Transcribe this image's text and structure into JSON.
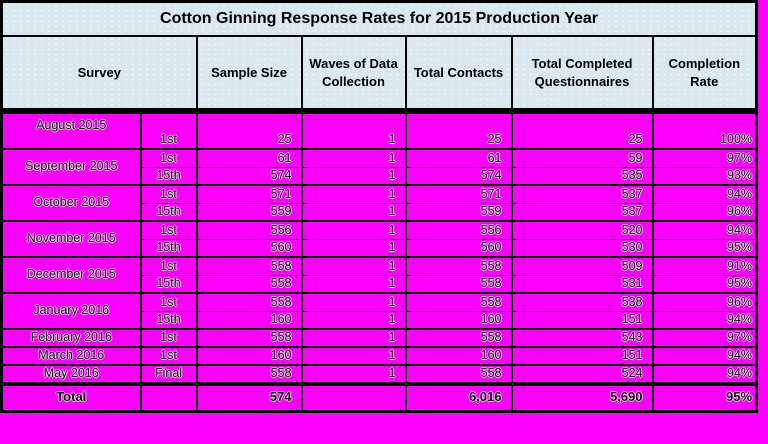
{
  "colors": {
    "page_background": "#ff00ff",
    "body_cell_background": "#fb00fb",
    "header_background": "#d9e7ee",
    "border": "#000000",
    "text": "#000000"
  },
  "table": {
    "title": "Cotton Ginning Response Rates for 2015 Production Year",
    "columns": [
      "Survey",
      "Sample Size",
      "Waves of Data Collection",
      "Total Contacts",
      "Total Completed Questionnaires",
      "Completion Rate"
    ],
    "groups": [
      {
        "month": "August 2015",
        "rows": [
          {
            "wave": "1st",
            "sample_size": "25",
            "waves_of_data_collection": "1",
            "total_contacts": "25",
            "total_completed_questionnaires": "25",
            "completion_rate": "100%"
          }
        ]
      },
      {
        "month": "September 2015",
        "rows": [
          {
            "wave": "1st",
            "sample_size": "61",
            "waves_of_data_collection": "1",
            "total_contacts": "61",
            "total_completed_questionnaires": "59",
            "completion_rate": "97%"
          },
          {
            "wave": "15th",
            "sample_size": "574",
            "waves_of_data_collection": "1",
            "total_contacts": "574",
            "total_completed_questionnaires": "535",
            "completion_rate": "93%"
          }
        ]
      },
      {
        "month": "October 2015",
        "rows": [
          {
            "wave": "1st",
            "sample_size": "571",
            "waves_of_data_collection": "1",
            "total_contacts": "571",
            "total_completed_questionnaires": "537",
            "completion_rate": "94%"
          },
          {
            "wave": "15th",
            "sample_size": "559",
            "waves_of_data_collection": "1",
            "total_contacts": "559",
            "total_completed_questionnaires": "537",
            "completion_rate": "96%"
          }
        ]
      },
      {
        "month": "November 2015",
        "rows": [
          {
            "wave": "1st",
            "sample_size": "556",
            "waves_of_data_collection": "1",
            "total_contacts": "556",
            "total_completed_questionnaires": "520",
            "completion_rate": "94%"
          },
          {
            "wave": "15th",
            "sample_size": "560",
            "waves_of_data_collection": "1",
            "total_contacts": "560",
            "total_completed_questionnaires": "530",
            "completion_rate": "95%"
          }
        ]
      },
      {
        "month": "December 2015",
        "rows": [
          {
            "wave": "1st",
            "sample_size": "558",
            "waves_of_data_collection": "1",
            "total_contacts": "558",
            "total_completed_questionnaires": "509",
            "completion_rate": "91%"
          },
          {
            "wave": "15th",
            "sample_size": "558",
            "waves_of_data_collection": "1",
            "total_contacts": "558",
            "total_completed_questionnaires": "531",
            "completion_rate": "95%"
          }
        ]
      },
      {
        "month": "January 2016",
        "rows": [
          {
            "wave": "1st",
            "sample_size": "558",
            "waves_of_data_collection": "1",
            "total_contacts": "558",
            "total_completed_questionnaires": "538",
            "completion_rate": "96%"
          },
          {
            "wave": "15th",
            "sample_size": "160",
            "waves_of_data_collection": "1",
            "total_contacts": "160",
            "total_completed_questionnaires": "151",
            "completion_rate": "94%"
          }
        ]
      },
      {
        "month": "February 2016",
        "rows": [
          {
            "wave": "1st",
            "sample_size": "558",
            "waves_of_data_collection": "1",
            "total_contacts": "558",
            "total_completed_questionnaires": "543",
            "completion_rate": "97%"
          }
        ]
      },
      {
        "month": "March 2016",
        "rows": [
          {
            "wave": "1st",
            "sample_size": "160",
            "waves_of_data_collection": "1",
            "total_contacts": "160",
            "total_completed_questionnaires": "151",
            "completion_rate": "94%"
          }
        ]
      },
      {
        "month": "May 2016",
        "rows": [
          {
            "wave": "Final",
            "sample_size": "558",
            "waves_of_data_collection": "1",
            "total_contacts": "558",
            "total_completed_questionnaires": "524",
            "completion_rate": "94%"
          }
        ]
      }
    ],
    "total_row": {
      "label": "Total",
      "wave": "",
      "sample_size": "574",
      "waves_of_data_collection": "",
      "total_contacts": "6,016",
      "total_completed_questionnaires": "5,690",
      "completion_rate": "95%"
    }
  }
}
